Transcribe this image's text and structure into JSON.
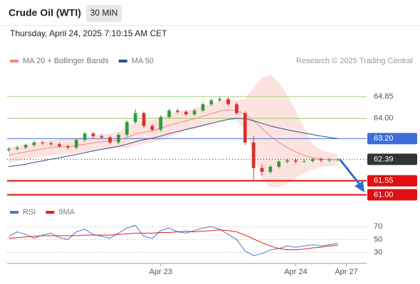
{
  "header": {
    "title": "Crude Oil (WTI)",
    "timeframe": "30 MIN",
    "timestamp": "Thursday, April 24, 2025 7:10:15 AM CET",
    "source": "Research © 2025 Trading Central"
  },
  "chart_data": [
    {
      "type": "candlestick",
      "x": [
        0,
        1,
        2,
        3,
        4,
        5,
        6,
        7,
        8,
        9,
        10,
        11,
        12,
        13,
        14,
        15,
        16,
        17,
        18,
        19,
        20,
        21,
        22,
        23,
        24,
        25,
        26,
        27,
        28,
        29,
        30,
        31,
        32,
        33,
        34,
        35,
        36,
        37,
        38,
        39
      ],
      "open": [
        62.75,
        62.8,
        62.85,
        62.95,
        63.05,
        63.02,
        62.98,
        62.9,
        62.85,
        63.15,
        63.4,
        63.3,
        63.25,
        63.05,
        63.35,
        63.85,
        64.2,
        63.7,
        63.55,
        64.05,
        64.3,
        64.25,
        64.15,
        64.3,
        64.55,
        64.7,
        64.75,
        64.55,
        64.2,
        63.05,
        62.05,
        61.9,
        62.1,
        62.3,
        62.35,
        62.3,
        62.32,
        62.4,
        62.35,
        62.38
      ],
      "high": [
        62.87,
        62.92,
        63.02,
        63.12,
        63.12,
        63.09,
        63.05,
        62.97,
        63.22,
        63.47,
        63.47,
        63.37,
        63.32,
        63.42,
        63.92,
        64.35,
        64.27,
        63.77,
        64.12,
        64.37,
        64.37,
        64.32,
        64.37,
        64.62,
        64.77,
        64.85,
        64.82,
        64.62,
        64.27,
        63.3,
        62.2,
        62.17,
        62.37,
        62.42,
        62.42,
        62.39,
        62.47,
        62.47,
        62.45,
        62.44
      ],
      "low": [
        62.68,
        62.73,
        62.78,
        62.88,
        62.95,
        62.91,
        62.83,
        62.78,
        62.78,
        63.08,
        63.23,
        63.18,
        62.98,
        62.98,
        63.28,
        63.78,
        63.63,
        63.48,
        63.48,
        63.98,
        64.18,
        64.08,
        64.08,
        64.23,
        64.48,
        64.63,
        64.48,
        64.13,
        62.95,
        61.6,
        61.75,
        61.83,
        62.03,
        62.23,
        62.23,
        62.25,
        62.25,
        62.28,
        62.28,
        62.32
      ],
      "close": [
        62.8,
        62.85,
        62.95,
        63.05,
        63.02,
        62.98,
        62.9,
        62.85,
        63.15,
        63.4,
        63.3,
        63.25,
        63.05,
        63.35,
        63.85,
        64.2,
        63.7,
        63.55,
        64.05,
        64.3,
        64.25,
        64.15,
        64.3,
        64.55,
        64.7,
        64.75,
        64.55,
        64.2,
        63.05,
        62.05,
        61.9,
        62.1,
        62.3,
        62.35,
        62.3,
        62.32,
        62.4,
        62.35,
        62.38,
        62.39
      ],
      "up_color": "#2e9e3e",
      "down_color": "#d9302b",
      "series": [
        {
          "name": "MA 20 + Bollinger Bands",
          "color": "#f08a80",
          "band_color": "#fcd9d4",
          "values": [
            62.55,
            62.62,
            62.68,
            62.74,
            62.8,
            62.85,
            62.88,
            62.9,
            62.93,
            62.98,
            63.03,
            63.08,
            63.1,
            63.15,
            63.25,
            63.38,
            63.45,
            63.5,
            63.6,
            63.72,
            63.82,
            63.9,
            63.98,
            64.08,
            64.18,
            64.28,
            64.33,
            64.3,
            64.15,
            63.9,
            63.6,
            63.3,
            63.05,
            62.85,
            62.68,
            62.55,
            62.45,
            62.4,
            62.38,
            62.37
          ],
          "upper": [
            62.85,
            62.92,
            62.98,
            63.04,
            63.1,
            63.15,
            63.18,
            63.2,
            63.23,
            63.28,
            63.33,
            63.38,
            63.4,
            63.45,
            63.7,
            63.83,
            63.9,
            63.95,
            64.05,
            64.17,
            64.27,
            64.3,
            64.38,
            64.48,
            64.58,
            64.68,
            64.73,
            64.7,
            64.75,
            65.2,
            65.6,
            65.7,
            65.4,
            64.9,
            64.3,
            63.6,
            63,
            62.75,
            62.65,
            62.6
          ],
          "lower": [
            62.25,
            62.32,
            62.38,
            62.44,
            62.5,
            62.55,
            62.58,
            62.6,
            62.63,
            62.68,
            62.73,
            62.78,
            62.8,
            62.85,
            62.8,
            62.93,
            63,
            63.05,
            63.15,
            63.27,
            63.37,
            63.5,
            63.58,
            63.68,
            63.78,
            63.88,
            63.93,
            63.9,
            63.55,
            62.6,
            61.6,
            61.3,
            61.3,
            61.45,
            61.65,
            61.85,
            62,
            62.1,
            62.12,
            62.15
          ]
        },
        {
          "name": "MA 50",
          "color": "#2f4f8f",
          "values": [
            62.1,
            62.15,
            62.2,
            62.27,
            62.33,
            62.4,
            62.45,
            62.52,
            62.58,
            62.65,
            62.72,
            62.78,
            62.84,
            62.9,
            62.98,
            63.08,
            63.16,
            63.22,
            63.3,
            63.4,
            63.48,
            63.56,
            63.64,
            63.72,
            63.8,
            63.88,
            63.95,
            64,
            63.98,
            63.9,
            63.8,
            63.7,
            63.62,
            63.55,
            63.48,
            63.42,
            63.36,
            63.3,
            63.25,
            63.2
          ]
        }
      ],
      "levels": [
        {
          "price": 64.85,
          "color": "#9dcc7a",
          "box": false
        },
        {
          "price": {
            "value": 64,
            "label": "64.00"
          },
          "color": "#9dcc7a",
          "box": false
        },
        {
          "price": {
            "value": 63.2,
            "label": "63.20"
          },
          "color": "#3d6fd9",
          "box": true
        },
        {
          "price": 62.39,
          "color": "#333333",
          "box": true,
          "dotted": true
        },
        {
          "price": 61.55,
          "color": "#e01010",
          "box": true
        },
        {
          "price": {
            "value": 61,
            "label": "61.00"
          },
          "color": "#e01010",
          "box": true
        }
      ],
      "xlim": [
        -0.2,
        42.4
      ],
      "ylim": [
        60.9,
        65.85
      ]
    },
    {
      "type": "line",
      "x": [
        0,
        1,
        2,
        3,
        4,
        5,
        6,
        7,
        8,
        9,
        10,
        11,
        12,
        13,
        14,
        15,
        16,
        17,
        18,
        19,
        20,
        21,
        22,
        23,
        24,
        25,
        26,
        27,
        28,
        29,
        30,
        31,
        32,
        33,
        34,
        35,
        36,
        37,
        38,
        39
      ],
      "series": [
        {
          "name": "RSI",
          "color": "#4b78d0",
          "values": [
            55,
            62,
            58,
            52,
            57,
            60,
            53,
            50,
            62,
            66,
            58,
            55,
            52,
            60,
            68,
            72,
            55,
            52,
            64,
            68,
            62,
            60,
            64,
            68,
            70,
            66,
            58,
            50,
            32,
            25,
            28,
            34,
            36,
            40,
            38,
            40,
            42,
            40,
            42,
            44
          ]
        },
        {
          "name": "9MA",
          "color": "#e02020",
          "values": [
            52,
            53,
            54,
            55,
            56,
            56,
            56,
            56,
            56,
            57,
            57,
            57,
            57,
            58,
            59,
            60,
            60,
            60,
            61,
            61,
            62,
            63,
            62,
            63,
            64,
            65,
            64,
            62,
            57,
            51,
            45,
            40,
            36,
            34,
            34,
            35,
            37,
            38,
            40,
            41
          ]
        }
      ],
      "xlim": [
        -0.2,
        42.4
      ],
      "ylim": [
        15,
        77
      ],
      "yticks": [
        70,
        50,
        30
      ],
      "xticks": [
        {
          "value": 18,
          "label": "Apr 23"
        },
        {
          "value": 34,
          "label": "Apr 24"
        },
        {
          "value": 40,
          "label": "Apr 27"
        }
      ]
    }
  ]
}
